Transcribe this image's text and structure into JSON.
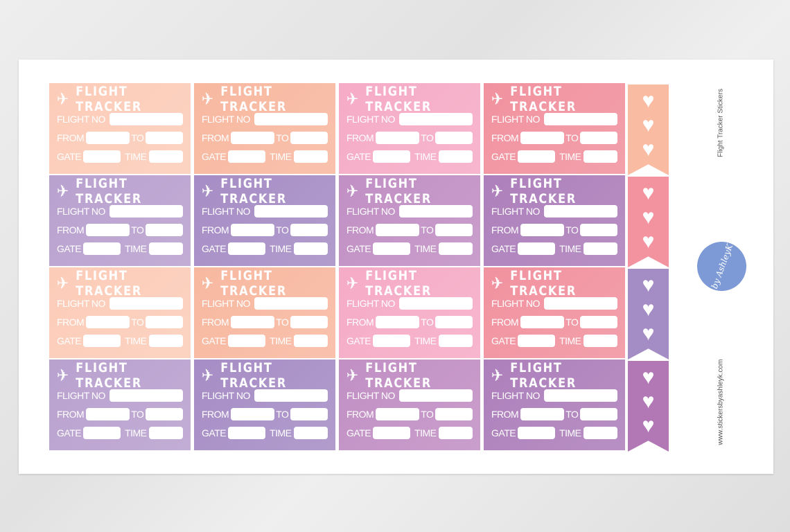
{
  "sticker": {
    "title": "FLIGHT TRACKER",
    "flight_no": "FLIGHT NO",
    "from": "FROM",
    "to": "TO",
    "gate": "GATE",
    "time": "TIME",
    "icon": "airplane-icon"
  },
  "card_colors": [
    [
      "#fcccb8",
      "#f8b8a0",
      "#f6abc6",
      "#f1929f"
    ],
    [
      "#b9a1cf",
      "#a68dc5",
      "#c18fc4",
      "#ad7fbb"
    ],
    [
      "#fcccb8",
      "#f8b8a0",
      "#f6abc6",
      "#f1929f"
    ],
    [
      "#b9a1cf",
      "#a68dc5",
      "#c18fc4",
      "#ad7fbb"
    ]
  ],
  "flag_colors": [
    "#f9bca3",
    "#f393a0",
    "#a48cc4",
    "#b278b5"
  ],
  "flag_icon": "heart-icon",
  "side": {
    "sheet_title": "Flight Tracker Stickers",
    "website": "www.stickersbyashleyk.com",
    "logo_text": "by AshleyK"
  }
}
